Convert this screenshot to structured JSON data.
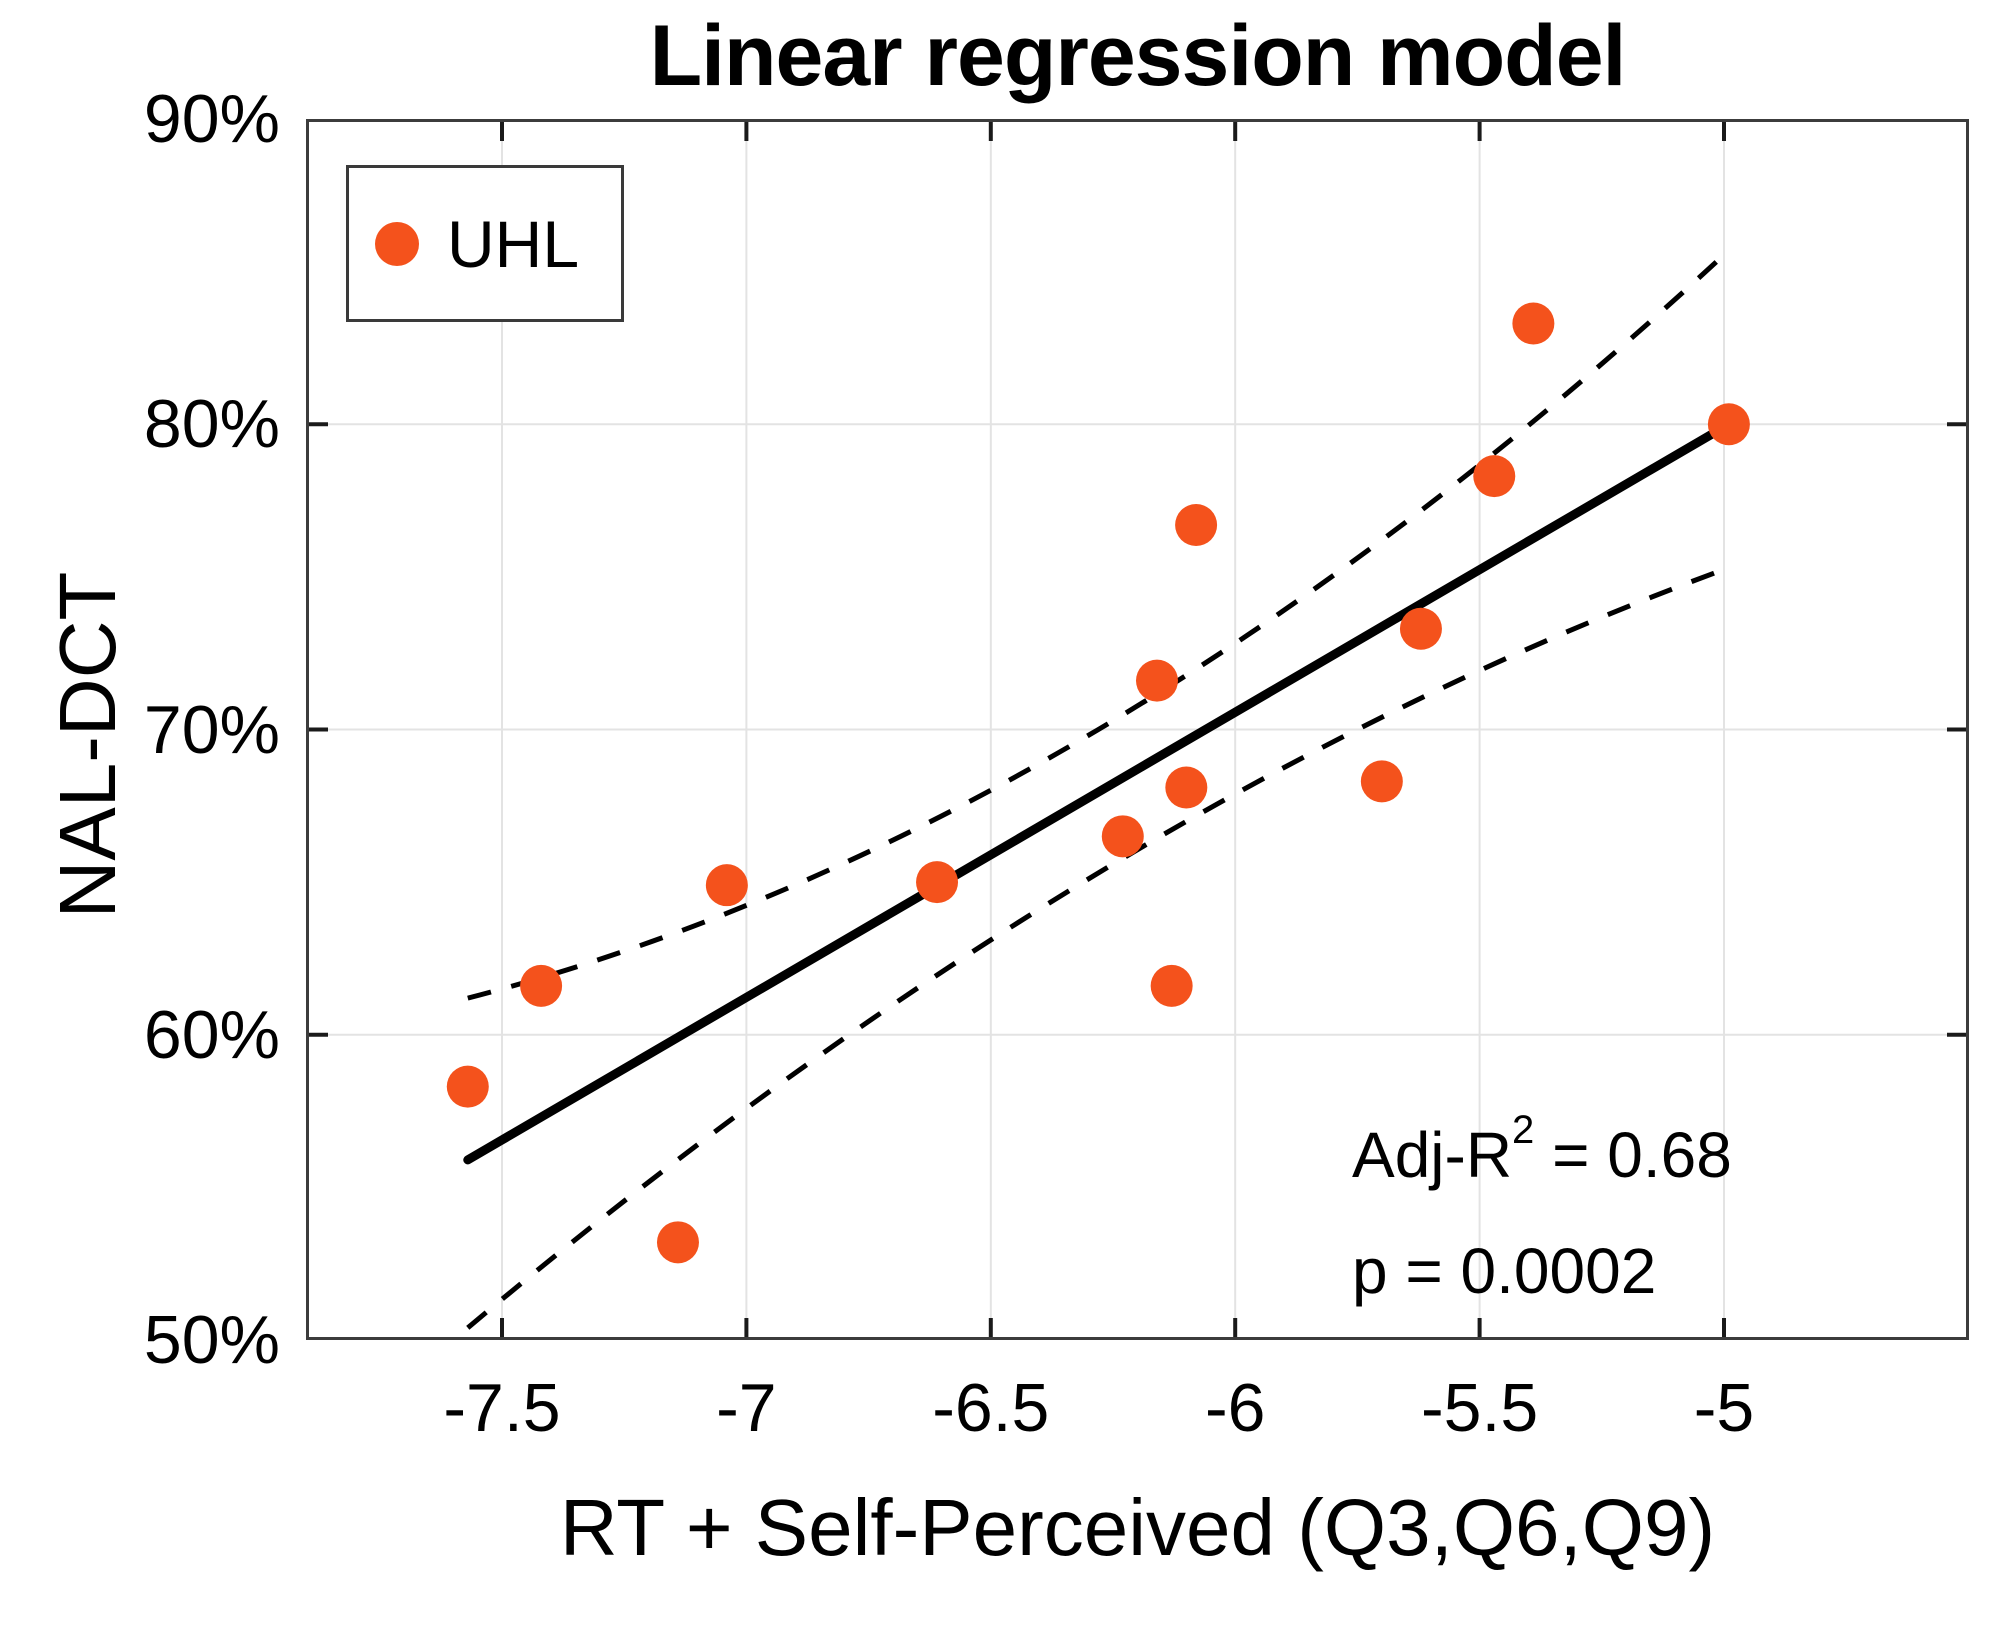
{
  "figure": {
    "title": "Linear regression model",
    "background_color": "#ffffff"
  },
  "axes": {
    "x": {
      "label": "RT + Self-Perceived (Q3,Q6,Q9)",
      "ticks": [
        {
          "value": -7.5,
          "label": "-7.5"
        },
        {
          "value": -7.0,
          "label": "-7"
        },
        {
          "value": -6.5,
          "label": "-6.5"
        },
        {
          "value": -6.0,
          "label": "-6"
        },
        {
          "value": -5.5,
          "label": "-5.5"
        },
        {
          "value": -5.0,
          "label": "-5"
        }
      ]
    },
    "y": {
      "label": "NAL-DCT",
      "ticks": [
        {
          "value": 90,
          "label": "90%"
        },
        {
          "value": 80,
          "label": "80%"
        },
        {
          "value": 70,
          "label": "70%"
        },
        {
          "value": 60,
          "label": "60%"
        },
        {
          "value": 50,
          "label": "50%"
        }
      ]
    },
    "grid_color": "#e3e3e3",
    "box_color": "#3c3c3c",
    "tick_color": "#1a1a1a"
  },
  "legend": {
    "position": "top-left",
    "items": [
      {
        "label": "UHL",
        "marker": "circle-icon",
        "marker_color": "#f4521c"
      }
    ]
  },
  "annotation": {
    "line1_prefix": "Adj-R",
    "line1_sup": "2",
    "line1_suffix": " = 0.68",
    "line2": "p = 0.0002"
  },
  "chart_data": {
    "type": "scatter",
    "title": "Linear regression model",
    "xlabel": "RT + Self-Perceived (Q3,Q6,Q9)",
    "ylabel": "NAL-DCT (%)",
    "xlim": [
      -7.9,
      -4.5
    ],
    "ylim": [
      50,
      90
    ],
    "grid": true,
    "legend_position": "top-left",
    "series": [
      {
        "name": "UHL",
        "marker": "circle",
        "color": "#f4521c",
        "points": [
          [
            -7.57,
            58.3
          ],
          [
            -7.42,
            61.6
          ],
          [
            -7.14,
            53.2
          ],
          [
            -7.04,
            64.9
          ],
          [
            -6.61,
            65.0
          ],
          [
            -6.23,
            66.5
          ],
          [
            -6.16,
            71.6
          ],
          [
            -6.13,
            61.6
          ],
          [
            -6.1,
            68.1
          ],
          [
            -6.08,
            76.7
          ],
          [
            -5.7,
            68.3
          ],
          [
            -5.62,
            73.3
          ],
          [
            -5.47,
            78.3
          ],
          [
            -5.39,
            83.3
          ],
          [
            -4.99,
            80.0
          ]
        ]
      }
    ],
    "fit_line": {
      "style": "solid",
      "color": "#000000",
      "points": [
        [
          -7.57,
          55.9
        ],
        [
          -4.99,
          80.0
        ]
      ]
    },
    "confidence_bounds": {
      "style": "dashed",
      "color": "#000000",
      "upper": [
        [
          -7.57,
          61.2
        ],
        [
          -6.28,
          70.0
        ],
        [
          -4.99,
          85.7
        ]
      ],
      "lower": [
        [
          -7.57,
          50.4
        ],
        [
          -6.28,
          65.3
        ],
        [
          -4.99,
          75.3
        ]
      ]
    },
    "stats": {
      "adj_r2": 0.68,
      "p_value": 0.0002
    }
  }
}
